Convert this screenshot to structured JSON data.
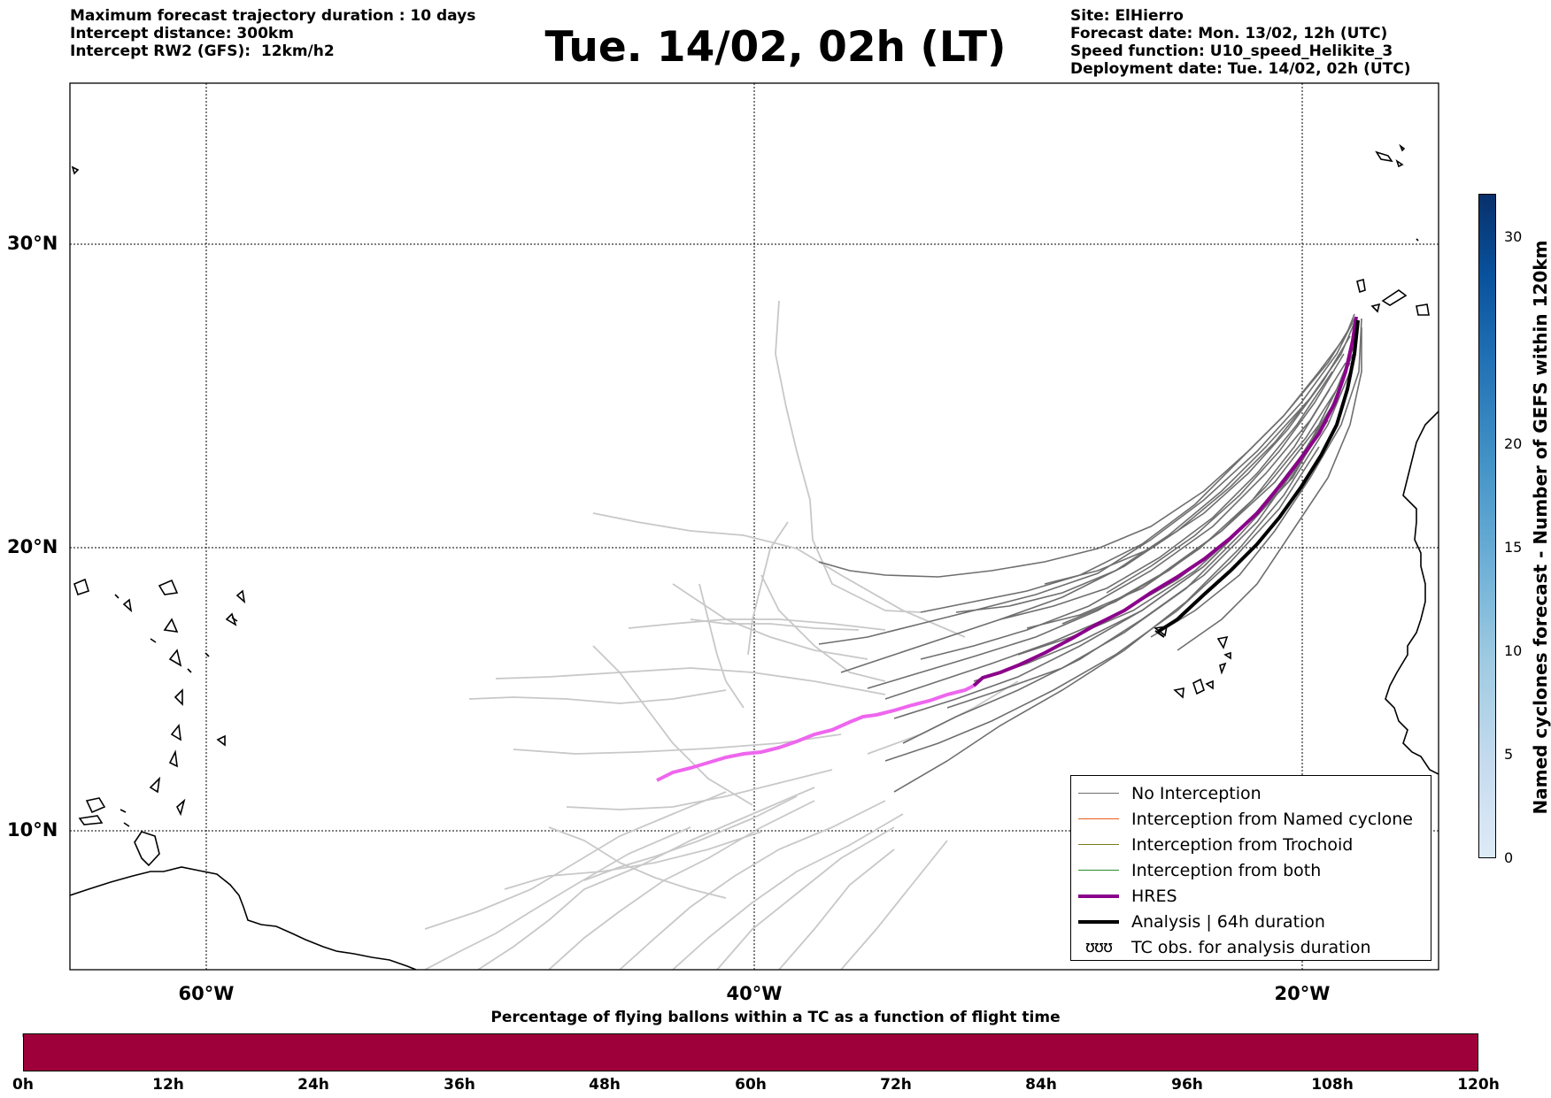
{
  "header": {
    "left_lines": [
      "Maximum forecast trajectory duration : 10 days",
      "Intercept distance: 300km",
      "Intercept RW2 (GFS):  12km/h2"
    ],
    "title": "Tue. 14/02, 02h (LT)",
    "right_lines": [
      "Site: ElHierro",
      "Forecast date: Mon. 13/02, 12h (UTC)",
      "Speed function: U10_speed_Helikite_3",
      "Deployment date: Tue. 14/02, 02h (UTC)"
    ]
  },
  "map": {
    "lat_labels": [
      "30°N",
      "20°N",
      "10°N"
    ],
    "lon_labels": [
      "60°W",
      "40°W",
      "20°W"
    ],
    "colors": {
      "no_interception": "#6e6e6e",
      "no_interception_light": "#c8c8c8",
      "named_cyclone": "#e8601c",
      "trochoid": "#7a7a1e",
      "both": "#2a8a2a",
      "hres": "#8b008b",
      "hres_light": "#ee66ee",
      "analysis": "#000000"
    }
  },
  "legend": {
    "items": [
      {
        "label": "No Interception",
        "color": "#6e6e6e",
        "width": 1
      },
      {
        "label": "Interception from Named cyclone",
        "color": "#e8601c",
        "width": 1
      },
      {
        "label": "Interception from Trochoid",
        "color": "#7a7a1e",
        "width": 1
      },
      {
        "label": "Interception from both",
        "color": "#2a8a2a",
        "width": 1
      },
      {
        "label": "HRES",
        "color": "#8b008b",
        "width": 4
      },
      {
        "label": "Analysis | 64h duration",
        "color": "#000000",
        "width": 4
      },
      {
        "label": "TC obs. for analysis duration",
        "glyph": "ʊʊʊ"
      }
    ]
  },
  "colorbar": {
    "label": "Named cyclones forecast - Number of GEFS within 120km",
    "ticks": [
      "0",
      "5",
      "10",
      "15",
      "20",
      "30"
    ],
    "min": 0,
    "max": 32
  },
  "percentage_bar": {
    "title": "Percentage of flying ballons within a TC as a function of flight time",
    "color": "#9e003a",
    "ticks": [
      "0h",
      "12h",
      "24h",
      "36h",
      "48h",
      "60h",
      "72h",
      "84h",
      "96h",
      "108h",
      "120h"
    ]
  }
}
